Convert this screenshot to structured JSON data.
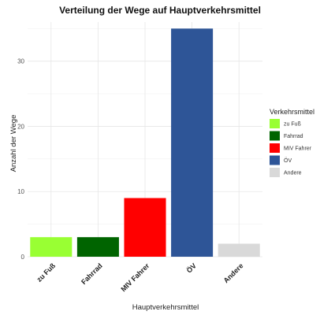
{
  "chart_data": {
    "type": "bar",
    "title": "Verteilung der Wege auf Hauptverkehrsmittel",
    "xlabel": "Hauptverkehrsmittel",
    "ylabel": "Anzahl der Wege",
    "categories": [
      "zu Fuß",
      "Fahrrad",
      "MIV Fahrer",
      "ÖV",
      "Andere"
    ],
    "values": [
      3,
      3,
      9,
      35,
      2
    ],
    "colors": [
      "#99ff33",
      "#006400",
      "#ff0000",
      "#2e5597",
      "#d9d9d9"
    ],
    "ylim": [
      0,
      36
    ],
    "yticks": [
      0,
      10,
      20,
      30
    ],
    "grid": true,
    "legend": {
      "title": "Verkehrsmittel",
      "position": "right",
      "entries": [
        "zu Fuß",
        "Fahrrad",
        "MIV Fahrer",
        "ÖV",
        "Andere"
      ]
    }
  }
}
